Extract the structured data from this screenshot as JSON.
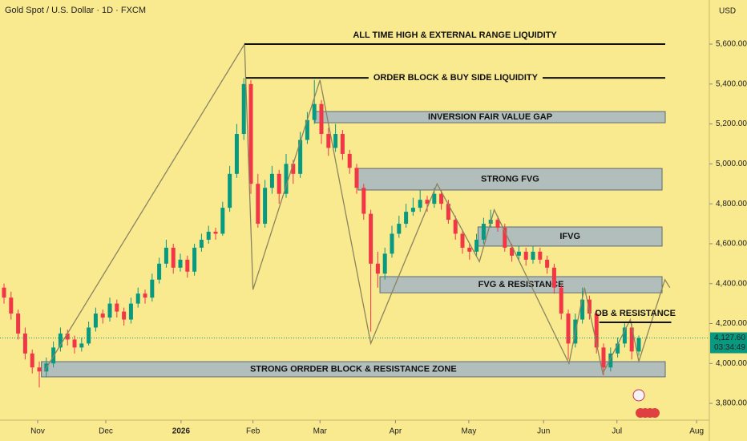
{
  "chart_data": {
    "type": "candlestick",
    "title": "Gold Spot / U.S. Dollar · 1D · FXCM",
    "currency": "USD",
    "xlim": [
      -0.57,
      100
    ],
    "xticks": [
      {
        "value": 4.77,
        "label": "Nov"
      },
      {
        "value": 14.43,
        "label": "Dec"
      },
      {
        "value": 25.1,
        "label": "2026"
      },
      {
        "value": 35.3,
        "label": "Feb"
      },
      {
        "value": 44.8,
        "label": "Mar"
      },
      {
        "value": 55.5,
        "label": "Apr"
      },
      {
        "value": 65.9,
        "label": "May"
      },
      {
        "value": 76.5,
        "label": "Jun"
      },
      {
        "value": 86.9,
        "label": "Jul"
      },
      {
        "value": 98.2,
        "label": "Aug"
      }
    ],
    "ylim": [
      3724,
      5821
    ],
    "yticks": [
      {
        "value": 3800,
        "label": "3,800.00"
      },
      {
        "value": 4000,
        "label": "4,000.00"
      },
      {
        "value": 4200,
        "label": "4,200.00"
      },
      {
        "value": 4400,
        "label": "4,400.00"
      },
      {
        "value": 4600,
        "label": "4,600.00"
      },
      {
        "value": 4800,
        "label": "4,800.00"
      },
      {
        "value": 5000,
        "label": "5,000.00"
      },
      {
        "value": 5200,
        "label": "5,200.00"
      },
      {
        "value": 5400,
        "label": "5,400.00"
      },
      {
        "value": 5600,
        "label": "5,600.00"
      }
    ],
    "up_color": "#089981",
    "down_color": "#f23645",
    "candles": [
      [
        4380,
        4400,
        4300,
        4330
      ],
      [
        4330,
        4360,
        4220,
        4250
      ],
      [
        4250,
        4270,
        4120,
        4150
      ],
      [
        4150,
        4180,
        4020,
        4050
      ],
      [
        4050,
        4070,
        3950,
        3980
      ],
      [
        3980,
        4010,
        3880,
        3960
      ],
      [
        3960,
        4030,
        3930,
        4000
      ],
      [
        4000,
        4110,
        3980,
        4080
      ],
      [
        4080,
        4180,
        4060,
        4150
      ],
      [
        4150,
        4170,
        4090,
        4120
      ],
      [
        4120,
        4140,
        4050,
        4080
      ],
      [
        4080,
        4130,
        4060,
        4100
      ],
      [
        4100,
        4210,
        4090,
        4180
      ],
      [
        4180,
        4280,
        4160,
        4250
      ],
      [
        4250,
        4270,
        4200,
        4230
      ],
      [
        4230,
        4330,
        4210,
        4300
      ],
      [
        4300,
        4320,
        4230,
        4260
      ],
      [
        4260,
        4280,
        4190,
        4220
      ],
      [
        4220,
        4330,
        4200,
        4300
      ],
      [
        4300,
        4380,
        4280,
        4350
      ],
      [
        4350,
        4370,
        4300,
        4330
      ],
      [
        4330,
        4450,
        4310,
        4420
      ],
      [
        4420,
        4530,
        4400,
        4500
      ],
      [
        4500,
        4620,
        4480,
        4580
      ],
      [
        4580,
        4600,
        4450,
        4480
      ],
      [
        4480,
        4550,
        4460,
        4520
      ],
      [
        4520,
        4540,
        4430,
        4460
      ],
      [
        4460,
        4600,
        4440,
        4580
      ],
      [
        4580,
        4650,
        4560,
        4620
      ],
      [
        4620,
        4690,
        4600,
        4660
      ],
      [
        4660,
        4680,
        4620,
        4650
      ],
      [
        4650,
        4810,
        4640,
        4780
      ],
      [
        4780,
        4990,
        4760,
        4950
      ],
      [
        4950,
        5200,
        4930,
        5150
      ],
      [
        5150,
        5430,
        5120,
        5400
      ],
      [
        5400,
        5420,
        4850,
        4900
      ],
      [
        4900,
        4950,
        4680,
        4700
      ],
      [
        4700,
        4920,
        4680,
        4880
      ],
      [
        4880,
        4990,
        4850,
        4950
      ],
      [
        4950,
        4970,
        4800,
        4850
      ],
      [
        4850,
        5050,
        4830,
        5000
      ],
      [
        5000,
        5020,
        4900,
        4950
      ],
      [
        4950,
        5160,
        4930,
        5120
      ],
      [
        5120,
        5260,
        5100,
        5220
      ],
      [
        5220,
        5420,
        5200,
        5300
      ],
      [
        5300,
        5320,
        5100,
        5150
      ],
      [
        5150,
        5180,
        5040,
        5080
      ],
      [
        5080,
        5200,
        5060,
        5150
      ],
      [
        5150,
        5170,
        5020,
        5050
      ],
      [
        5050,
        5070,
        4950,
        4980
      ],
      [
        4980,
        5000,
        4850,
        4880
      ],
      [
        4880,
        4900,
        4720,
        4750
      ],
      [
        4750,
        4770,
        4160,
        4500
      ],
      [
        4500,
        4560,
        4380,
        4450
      ],
      [
        4450,
        4580,
        4420,
        4550
      ],
      [
        4550,
        4690,
        4530,
        4650
      ],
      [
        4650,
        4740,
        4630,
        4700
      ],
      [
        4700,
        4800,
        4680,
        4760
      ],
      [
        4760,
        4830,
        4740,
        4780
      ],
      [
        4780,
        4870,
        4760,
        4820
      ],
      [
        4820,
        4840,
        4760,
        4800
      ],
      [
        4800,
        4880,
        4780,
        4850
      ],
      [
        4850,
        4870,
        4770,
        4800
      ],
      [
        4800,
        4820,
        4700,
        4720
      ],
      [
        4720,
        4740,
        4620,
        4650
      ],
      [
        4650,
        4670,
        4550,
        4580
      ],
      [
        4580,
        4600,
        4520,
        4560
      ],
      [
        4560,
        4650,
        4540,
        4620
      ],
      [
        4620,
        4730,
        4600,
        4700
      ],
      [
        4700,
        4770,
        4680,
        4720
      ],
      [
        4720,
        4740,
        4660,
        4680
      ],
      [
        4680,
        4700,
        4560,
        4580
      ],
      [
        4580,
        4600,
        4510,
        4540
      ],
      [
        4540,
        4590,
        4520,
        4560
      ],
      [
        4560,
        4580,
        4490,
        4520
      ],
      [
        4520,
        4590,
        4500,
        4560
      ],
      [
        4560,
        4580,
        4500,
        4520
      ],
      [
        4520,
        4540,
        4450,
        4480
      ],
      [
        4480,
        4500,
        4350,
        4380
      ],
      [
        4380,
        4400,
        4220,
        4250
      ],
      [
        4250,
        4270,
        4020,
        4100
      ],
      [
        4100,
        4250,
        4080,
        4220
      ],
      [
        4220,
        4380,
        4200,
        4320
      ],
      [
        4320,
        4340,
        4220,
        4250
      ],
      [
        4250,
        4270,
        4050,
        4080
      ],
      [
        4080,
        4100,
        3940,
        3980
      ],
      [
        3980,
        4080,
        3960,
        4050
      ],
      [
        4050,
        4130,
        4030,
        4100
      ],
      [
        4100,
        4210,
        4080,
        4180
      ],
      [
        4180,
        4200,
        4020,
        4060
      ],
      [
        4060,
        4140,
        4040,
        4127.6
      ]
    ],
    "zigzag": {
      "color": "#8a8460",
      "x": [
        5.7,
        34.1,
        35.3,
        44.8,
        52,
        61.4,
        67.4,
        69.5,
        80.1,
        82.3,
        84.9,
        88.8,
        90,
        93.7,
        94.4
      ],
      "y": [
        3960,
        5600,
        4370,
        5420,
        4100,
        4900,
        4510,
        4770,
        4000,
        4380,
        3950,
        4220,
        4010,
        4420,
        4380
      ]
    },
    "zones": [
      {
        "label": "INVERSION FAIR VALUE GAP",
        "x": [
          44.1,
          93.75
        ],
        "y": [
          5206,
          5262
        ]
      },
      {
        "label": "STRONG FVG",
        "x": [
          50.2,
          93.3
        ],
        "y": [
          4869,
          4977
        ]
      },
      {
        "label": "IFVG",
        "x": [
          67.2,
          93.3
        ],
        "y": [
          4588,
          4684
        ]
      },
      {
        "label": "FVG & RESISTANCE",
        "x": [
          53.3,
          93.3
        ],
        "y": [
          4354,
          4435
        ]
      },
      {
        "label": "STRONG ORRDER BLOCK & RESISTANCE ZONE",
        "x": [
          5.3,
          93.75
        ],
        "y": [
          3933,
          4009
        ]
      }
    ],
    "levels": [
      {
        "label": "ALL TIME HIGH & EXTERNAL RANGE LIQUIDITY",
        "value": 5600,
        "x": [
          34.1,
          93.75
        ],
        "label_position": "above"
      },
      {
        "label": "ORDER BLOCK & BUY SIDE LIQUIDITY",
        "value": 5431,
        "x": [
          34.3,
          93.75
        ],
        "label_position": "inline"
      },
      {
        "label": "OB & RESISTANCE",
        "value": 4206,
        "x": [
          84.4,
          94.6
        ],
        "label_position": "above"
      }
    ],
    "last_price": {
      "value": 4127.6,
      "label": "4,127.60",
      "countdown": "03:34:49"
    }
  }
}
